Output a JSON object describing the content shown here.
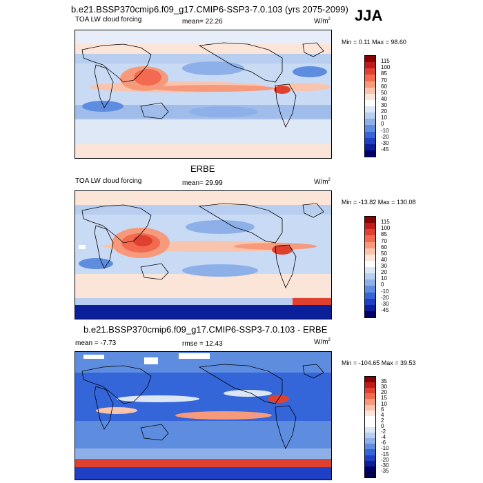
{
  "header": {
    "title": "b.e21.BSSP370cmip6.f09_g17.CMIP6-SSP3-7.0.103 (yrs 2075-2099)",
    "season": "JJA"
  },
  "panels": [
    {
      "id": "model",
      "subtitle": "",
      "left_label": "TOA LW cloud forcing",
      "center_label": "mean=  22.26",
      "units": "W/m",
      "units_sup": "2",
      "minmax": "Min =   0.11  Max =  98.60",
      "colorbar_ticks": [
        "115",
        "100",
        "85",
        "70",
        "60",
        "50",
        "40",
        "30",
        "20",
        "10",
        "0",
        "-10",
        "-20",
        "-30",
        "-45"
      ]
    },
    {
      "id": "obs",
      "subtitle": "ERBE",
      "left_label": "TOA LW cloud forcing",
      "center_label": "mean=  29.99",
      "units": "W/m",
      "units_sup": "2",
      "minmax": "Min = -13.82  Max =  130.08",
      "colorbar_ticks": [
        "115",
        "100",
        "85",
        "70",
        "60",
        "50",
        "40",
        "30",
        "20",
        "10",
        "0",
        "-10",
        "-20",
        "-30",
        "-45"
      ]
    },
    {
      "id": "diff",
      "subtitle": "b.e21.BSSP370cmip6.f09_g17.CMIP6-SSP3-7.0.103 - ERBE",
      "left_label": "mean =  -7.73",
      "center_label": "rmse =  12.43",
      "units": "W/m",
      "units_sup": "2",
      "minmax": "Min = -104.65  Max =  39.53",
      "colorbar_ticks": [
        "35",
        "30",
        "20",
        "15",
        "10",
        "6",
        "4",
        "2",
        "0",
        "-2",
        "-4",
        "-6",
        "-10",
        "-15",
        "-20",
        "-30",
        "-35"
      ]
    }
  ],
  "colors": {
    "main_scale": [
      "#8b0000",
      "#c21a1a",
      "#e0412e",
      "#f26a4f",
      "#f79a7c",
      "#f9c4ad",
      "#fbe4d8",
      "#ffffff",
      "#dbe7f7",
      "#b7cef0",
      "#8eb0e8",
      "#5e8de0",
      "#3466d9",
      "#1f3fc4",
      "#0a1f99",
      "#000066"
    ],
    "diff_scale": [
      "#8b0000",
      "#c21a1a",
      "#e0412e",
      "#f26a4f",
      "#f79a7c",
      "#f9c4ad",
      "#fbe4d8",
      "#ffffff",
      "#ffffff",
      "#dbe7f7",
      "#b7cef0",
      "#8eb0e8",
      "#5e8de0",
      "#3466d9",
      "#1f3fc4",
      "#0a1f99",
      "#000066",
      "#00004d"
    ]
  }
}
